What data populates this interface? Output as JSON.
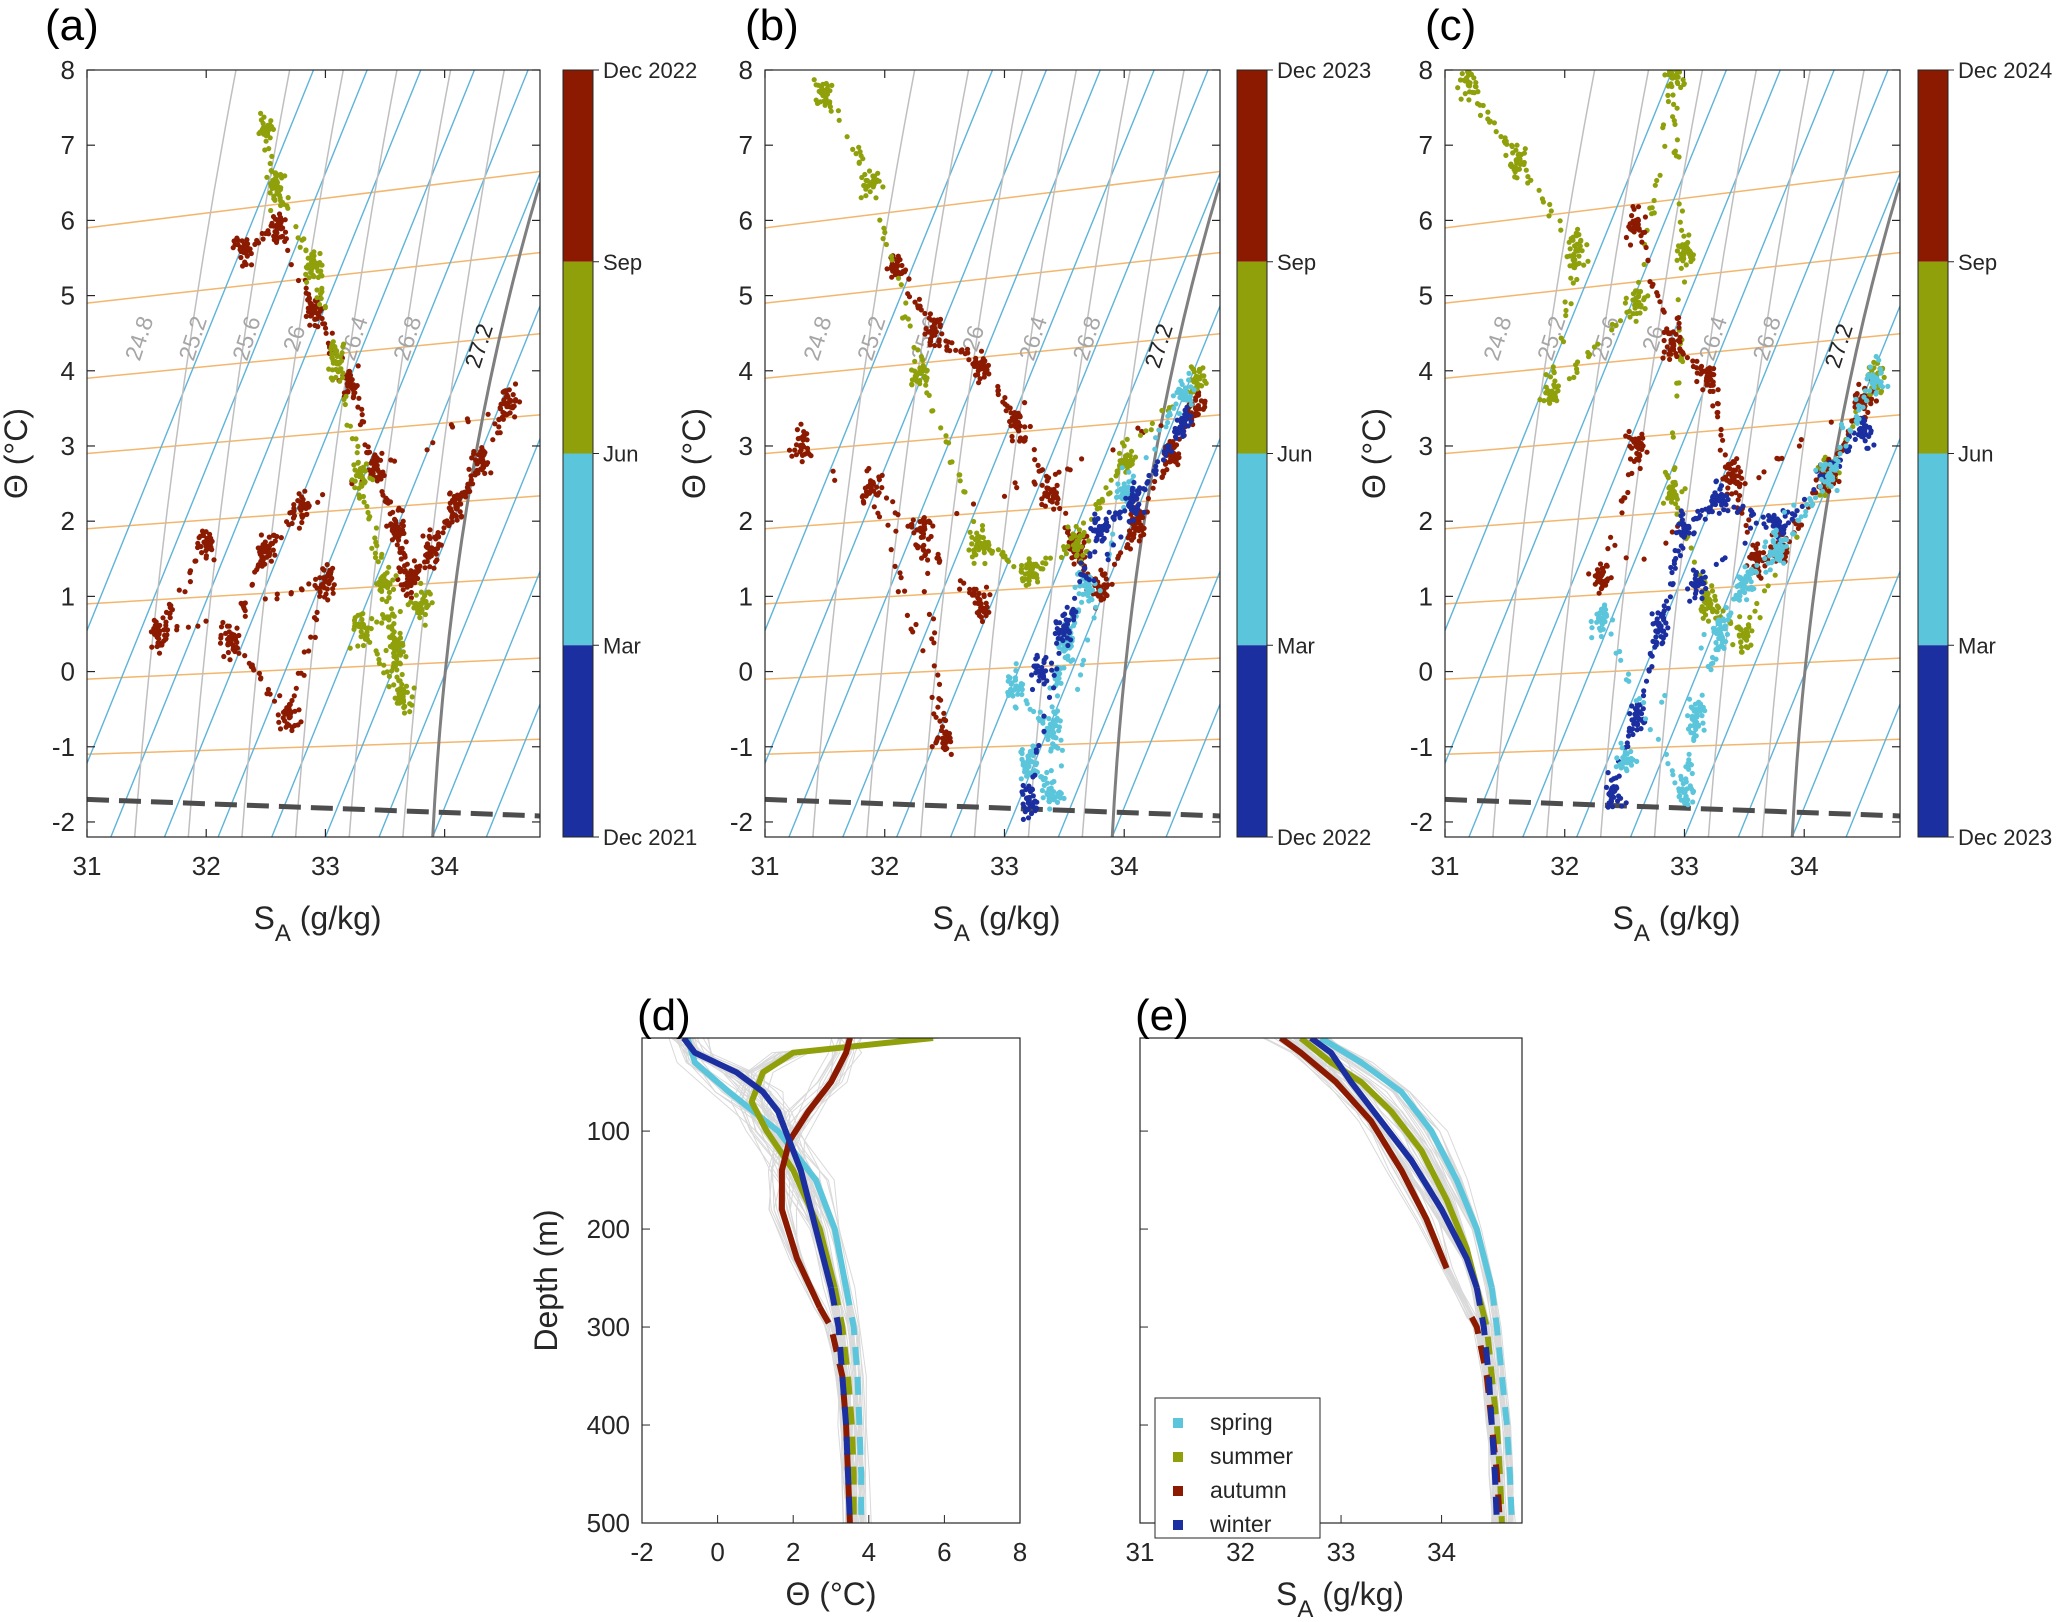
{
  "figure_title": "",
  "colors": {
    "winter": "#1b2fa0",
    "spring": "#5bc6db",
    "summer": "#8fa00a",
    "autumn": "#8b1a00",
    "isopycnal": "#bfbfbf",
    "isotherm": "#f2b66d",
    "isohaline": "#5eb3d9",
    "freezing": "#4d4d4d",
    "thin_profile": "#d9d9d9"
  },
  "chart_data": [
    {
      "panel": "(a)",
      "type": "scatter",
      "xlabel_main": "S",
      "xlabel_sub": "A",
      "xlabel_unit": " (g/kg)",
      "ylabel": "Θ (°C)",
      "xlim": [
        31,
        34.8
      ],
      "ylim": [
        -2.2,
        8
      ],
      "xticks": [
        "31",
        "32",
        "33",
        "34"
      ],
      "yticks": [
        "-2",
        "-1",
        "0",
        "1",
        "2",
        "3",
        "4",
        "5",
        "6",
        "7",
        "8"
      ],
      "isopycnal_labels": [
        "24.8",
        "25.2",
        "25.6",
        "26",
        "26.4",
        "26.8",
        "27.2"
      ],
      "colorbar": {
        "top": "Dec 2022",
        "sep": "Sep",
        "jun": "Jun",
        "mar": "Mar",
        "bottom": "Dec 2021"
      },
      "series": [
        {
          "name": "autumn",
          "centroid": [
            33.3,
            2.8
          ],
          "points": [
            [
              32.3,
              5.6
            ],
            [
              32.6,
              5.9
            ],
            [
              32.9,
              4.8
            ],
            [
              33.2,
              3.9
            ],
            [
              33.4,
              2.8
            ],
            [
              33.6,
              1.9
            ],
            [
              33.7,
              1.2
            ],
            [
              33.9,
              1.6
            ],
            [
              34.1,
              2.2
            ],
            [
              34.3,
              2.8
            ],
            [
              34.55,
              3.6
            ],
            [
              32.8,
              2.2
            ],
            [
              32.5,
              1.6
            ],
            [
              32.2,
              0.4
            ],
            [
              32.7,
              -0.6
            ],
            [
              33.0,
              1.2
            ],
            [
              31.6,
              0.5
            ],
            [
              32.0,
              1.7
            ]
          ]
        },
        {
          "name": "summer",
          "centroid": [
            33.3,
            1.5
          ],
          "points": [
            [
              32.5,
              7.2
            ],
            [
              32.6,
              6.4
            ],
            [
              32.9,
              5.4
            ],
            [
              33.1,
              4.1
            ],
            [
              33.3,
              2.6
            ],
            [
              33.5,
              1.2
            ],
            [
              33.6,
              0.3
            ],
            [
              33.65,
              -0.4
            ],
            [
              33.3,
              0.6
            ],
            [
              33.8,
              0.9
            ]
          ]
        }
      ]
    },
    {
      "panel": "(b)",
      "type": "scatter",
      "xlabel_main": "S",
      "xlabel_sub": "A",
      "xlabel_unit": " (g/kg)",
      "ylabel": "Θ (°C)",
      "xlim": [
        31,
        34.8
      ],
      "ylim": [
        -2.2,
        8
      ],
      "xticks": [
        "31",
        "32",
        "33",
        "34"
      ],
      "yticks": [
        "-2",
        "-1",
        "0",
        "1",
        "2",
        "3",
        "4",
        "5",
        "6",
        "7",
        "8"
      ],
      "isopycnal_labels": [
        "24.8",
        "25.2",
        "25.6",
        "26",
        "26.4",
        "26.8",
        "27.2"
      ],
      "colorbar": {
        "top": "Dec 2023",
        "sep": "Sep",
        "jun": "Jun",
        "mar": "Mar",
        "bottom": "Dec 2022"
      },
      "series": [
        {
          "name": "autumn",
          "centroid": [
            33.0,
            2.9
          ],
          "points": [
            [
              32.1,
              5.4
            ],
            [
              32.4,
              4.5
            ],
            [
              32.8,
              4.1
            ],
            [
              33.1,
              3.3
            ],
            [
              33.4,
              2.4
            ],
            [
              33.6,
              1.6
            ],
            [
              33.8,
              1.1
            ],
            [
              34.1,
              1.9
            ],
            [
              34.4,
              2.9
            ],
            [
              34.6,
              3.5
            ],
            [
              32.3,
              1.9
            ],
            [
              32.5,
              -0.9
            ],
            [
              31.9,
              2.5
            ],
            [
              32.8,
              0.9
            ],
            [
              31.3,
              3.0
            ]
          ]
        },
        {
          "name": "summer",
          "centroid": [
            33.0,
            2.0
          ],
          "points": [
            [
              31.5,
              7.7
            ],
            [
              31.9,
              6.5
            ],
            [
              32.3,
              4.0
            ],
            [
              32.8,
              1.7
            ],
            [
              33.2,
              1.3
            ],
            [
              33.6,
              1.7
            ],
            [
              34.0,
              2.8
            ],
            [
              34.6,
              3.9
            ]
          ]
        },
        {
          "name": "spring",
          "centroid": [
            33.5,
            0.0
          ],
          "points": [
            [
              33.1,
              -0.2
            ],
            [
              33.4,
              -0.8
            ],
            [
              33.5,
              0.4
            ],
            [
              33.7,
              1.1
            ],
            [
              33.2,
              -1.2
            ],
            [
              33.4,
              -1.6
            ],
            [
              34.0,
              2.4
            ],
            [
              34.5,
              3.7
            ]
          ]
        },
        {
          "name": "winter",
          "centroid": [
            33.6,
            1.5
          ],
          "points": [
            [
              33.2,
              -1.7
            ],
            [
              33.5,
              0.6
            ],
            [
              33.8,
              1.9
            ],
            [
              34.1,
              2.3
            ],
            [
              34.5,
              3.3
            ],
            [
              33.3,
              0.0
            ]
          ]
        }
      ]
    },
    {
      "panel": "(c)",
      "type": "scatter",
      "xlabel_main": "S",
      "xlabel_sub": "A",
      "xlabel_unit": " (g/kg)",
      "ylabel": "Θ (°C)",
      "xlim": [
        31,
        34.8
      ],
      "ylim": [
        -2.2,
        8
      ],
      "xticks": [
        "31",
        "32",
        "33",
        "34"
      ],
      "yticks": [
        "-2",
        "-1",
        "0",
        "1",
        "2",
        "3",
        "4",
        "5",
        "6",
        "7",
        "8"
      ],
      "isopycnal_labels": [
        "24.8",
        "25.2",
        "25.6",
        "26",
        "26.4",
        "26.8",
        "27.2"
      ],
      "colorbar": {
        "top": "Dec 2024",
        "sep": "Sep",
        "jun": "Jun",
        "mar": "Mar",
        "bottom": "Dec 2023"
      },
      "series": [
        {
          "name": "summer",
          "centroid": [
            32.8,
            3.0
          ],
          "points": [
            [
              31.2,
              7.8
            ],
            [
              31.6,
              6.8
            ],
            [
              32.1,
              5.6
            ],
            [
              31.9,
              3.7
            ],
            [
              32.6,
              4.9
            ],
            [
              32.9,
              7.9
            ],
            [
              33.0,
              5.6
            ],
            [
              32.9,
              2.4
            ],
            [
              33.2,
              0.9
            ],
            [
              33.5,
              0.5
            ],
            [
              34.2,
              2.6
            ],
            [
              34.6,
              3.9
            ]
          ]
        },
        {
          "name": "autumn",
          "centroid": [
            33.3,
            2.9
          ],
          "points": [
            [
              32.6,
              5.9
            ],
            [
              32.9,
              4.4
            ],
            [
              33.2,
              3.9
            ],
            [
              33.4,
              2.6
            ],
            [
              33.6,
              1.5
            ],
            [
              33.8,
              1.6
            ],
            [
              34.2,
              2.6
            ],
            [
              34.5,
              3.6
            ],
            [
              32.3,
              1.2
            ],
            [
              32.6,
              3.0
            ]
          ]
        },
        {
          "name": "winter",
          "centroid": [
            33.0,
            0.5
          ],
          "points": [
            [
              32.4,
              -1.6
            ],
            [
              32.6,
              -0.6
            ],
            [
              32.8,
              0.6
            ],
            [
              33.0,
              1.9
            ],
            [
              33.3,
              2.3
            ],
            [
              33.8,
              1.9
            ],
            [
              34.5,
              3.2
            ],
            [
              33.1,
              1.2
            ]
          ]
        },
        {
          "name": "spring",
          "centroid": [
            33.2,
            0.2
          ],
          "points": [
            [
              32.3,
              0.7
            ],
            [
              33.0,
              -1.6
            ],
            [
              33.1,
              -0.6
            ],
            [
              33.3,
              0.5
            ],
            [
              33.5,
              1.2
            ],
            [
              33.8,
              1.6
            ],
            [
              34.2,
              2.6
            ],
            [
              34.6,
              3.9
            ],
            [
              32.5,
              -1.2
            ]
          ]
        }
      ]
    },
    {
      "panel": "(d)",
      "type": "line",
      "xlabel": "Θ (°C)",
      "ylabel": "Depth (m)",
      "xlim": [
        -2,
        8
      ],
      "ylim": [
        5,
        500
      ],
      "xticks": [
        "-2",
        "0",
        "2",
        "4",
        "6",
        "8"
      ],
      "yticks": [
        "100",
        "200",
        "300",
        "400",
        "500"
      ],
      "series": [
        {
          "name": "spring",
          "depth": [
            5,
            30,
            60,
            100,
            150,
            200,
            260,
            300,
            350,
            400,
            450,
            500
          ],
          "values": [
            -0.8,
            -0.6,
            0.3,
            1.6,
            2.6,
            3.1,
            3.4,
            3.6,
            3.7,
            3.75,
            3.8,
            3.8
          ]
        },
        {
          "name": "summer",
          "depth": [
            5,
            20,
            40,
            70,
            100,
            140,
            200,
            260,
            300,
            350,
            400,
            450,
            500
          ],
          "values": [
            5.7,
            2.0,
            1.2,
            0.9,
            1.3,
            2.0,
            2.7,
            3.1,
            3.3,
            3.45,
            3.55,
            3.6,
            3.6
          ]
        },
        {
          "name": "autumn",
          "depth": [
            5,
            20,
            50,
            80,
            110,
            140,
            180,
            230,
            280,
            300,
            350,
            400,
            450,
            500
          ],
          "values": [
            3.5,
            3.4,
            3.0,
            2.4,
            1.9,
            1.7,
            1.7,
            2.1,
            2.7,
            3.0,
            3.3,
            3.4,
            3.45,
            3.5
          ]
        },
        {
          "name": "winter",
          "depth": [
            5,
            20,
            40,
            60,
            80,
            100,
            140,
            200,
            260,
            300,
            350,
            400,
            450,
            500
          ],
          "values": [
            -0.9,
            -0.6,
            0.5,
            1.2,
            1.6,
            1.8,
            2.2,
            2.6,
            3.0,
            3.2,
            3.3,
            3.4,
            3.45,
            3.5
          ]
        }
      ]
    },
    {
      "panel": "(e)",
      "type": "line",
      "xlabel_main": "S",
      "xlabel_sub": "A",
      "xlabel_unit": " (g/kg)",
      "xlim": [
        31,
        34.8
      ],
      "ylim": [
        5,
        500
      ],
      "xticks": [
        "31",
        "32",
        "33",
        "34"
      ],
      "series": [
        {
          "name": "spring",
          "depth": [
            5,
            30,
            60,
            100,
            150,
            200,
            260,
            300,
            350,
            400,
            450,
            500
          ],
          "values": [
            32.8,
            33.2,
            33.6,
            33.9,
            34.15,
            34.35,
            34.5,
            34.55,
            34.6,
            34.65,
            34.68,
            34.7
          ]
        },
        {
          "name": "summer",
          "depth": [
            5,
            30,
            50,
            80,
            120,
            170,
            220,
            280,
            300,
            350,
            400,
            450,
            500
          ],
          "values": [
            32.6,
            32.9,
            33.2,
            33.5,
            33.8,
            34.05,
            34.25,
            34.4,
            34.45,
            34.5,
            34.55,
            34.58,
            34.6
          ]
        },
        {
          "name": "autumn",
          "depth": [
            5,
            20,
            50,
            90,
            140,
            190,
            240,
            290,
            300,
            350,
            400,
            450,
            500
          ],
          "values": [
            32.4,
            32.6,
            32.95,
            33.3,
            33.6,
            33.85,
            34.05,
            34.3,
            34.35,
            34.45,
            34.5,
            34.55,
            34.58
          ]
        },
        {
          "name": "winter",
          "depth": [
            5,
            20,
            50,
            90,
            130,
            180,
            230,
            260,
            300,
            350,
            400,
            450,
            500
          ],
          "values": [
            32.7,
            32.9,
            33.1,
            33.4,
            33.7,
            34.0,
            34.25,
            34.35,
            34.42,
            34.47,
            34.5,
            34.53,
            34.55
          ]
        }
      ],
      "legend": [
        "spring",
        "summer",
        "autumn",
        "winter"
      ]
    }
  ]
}
